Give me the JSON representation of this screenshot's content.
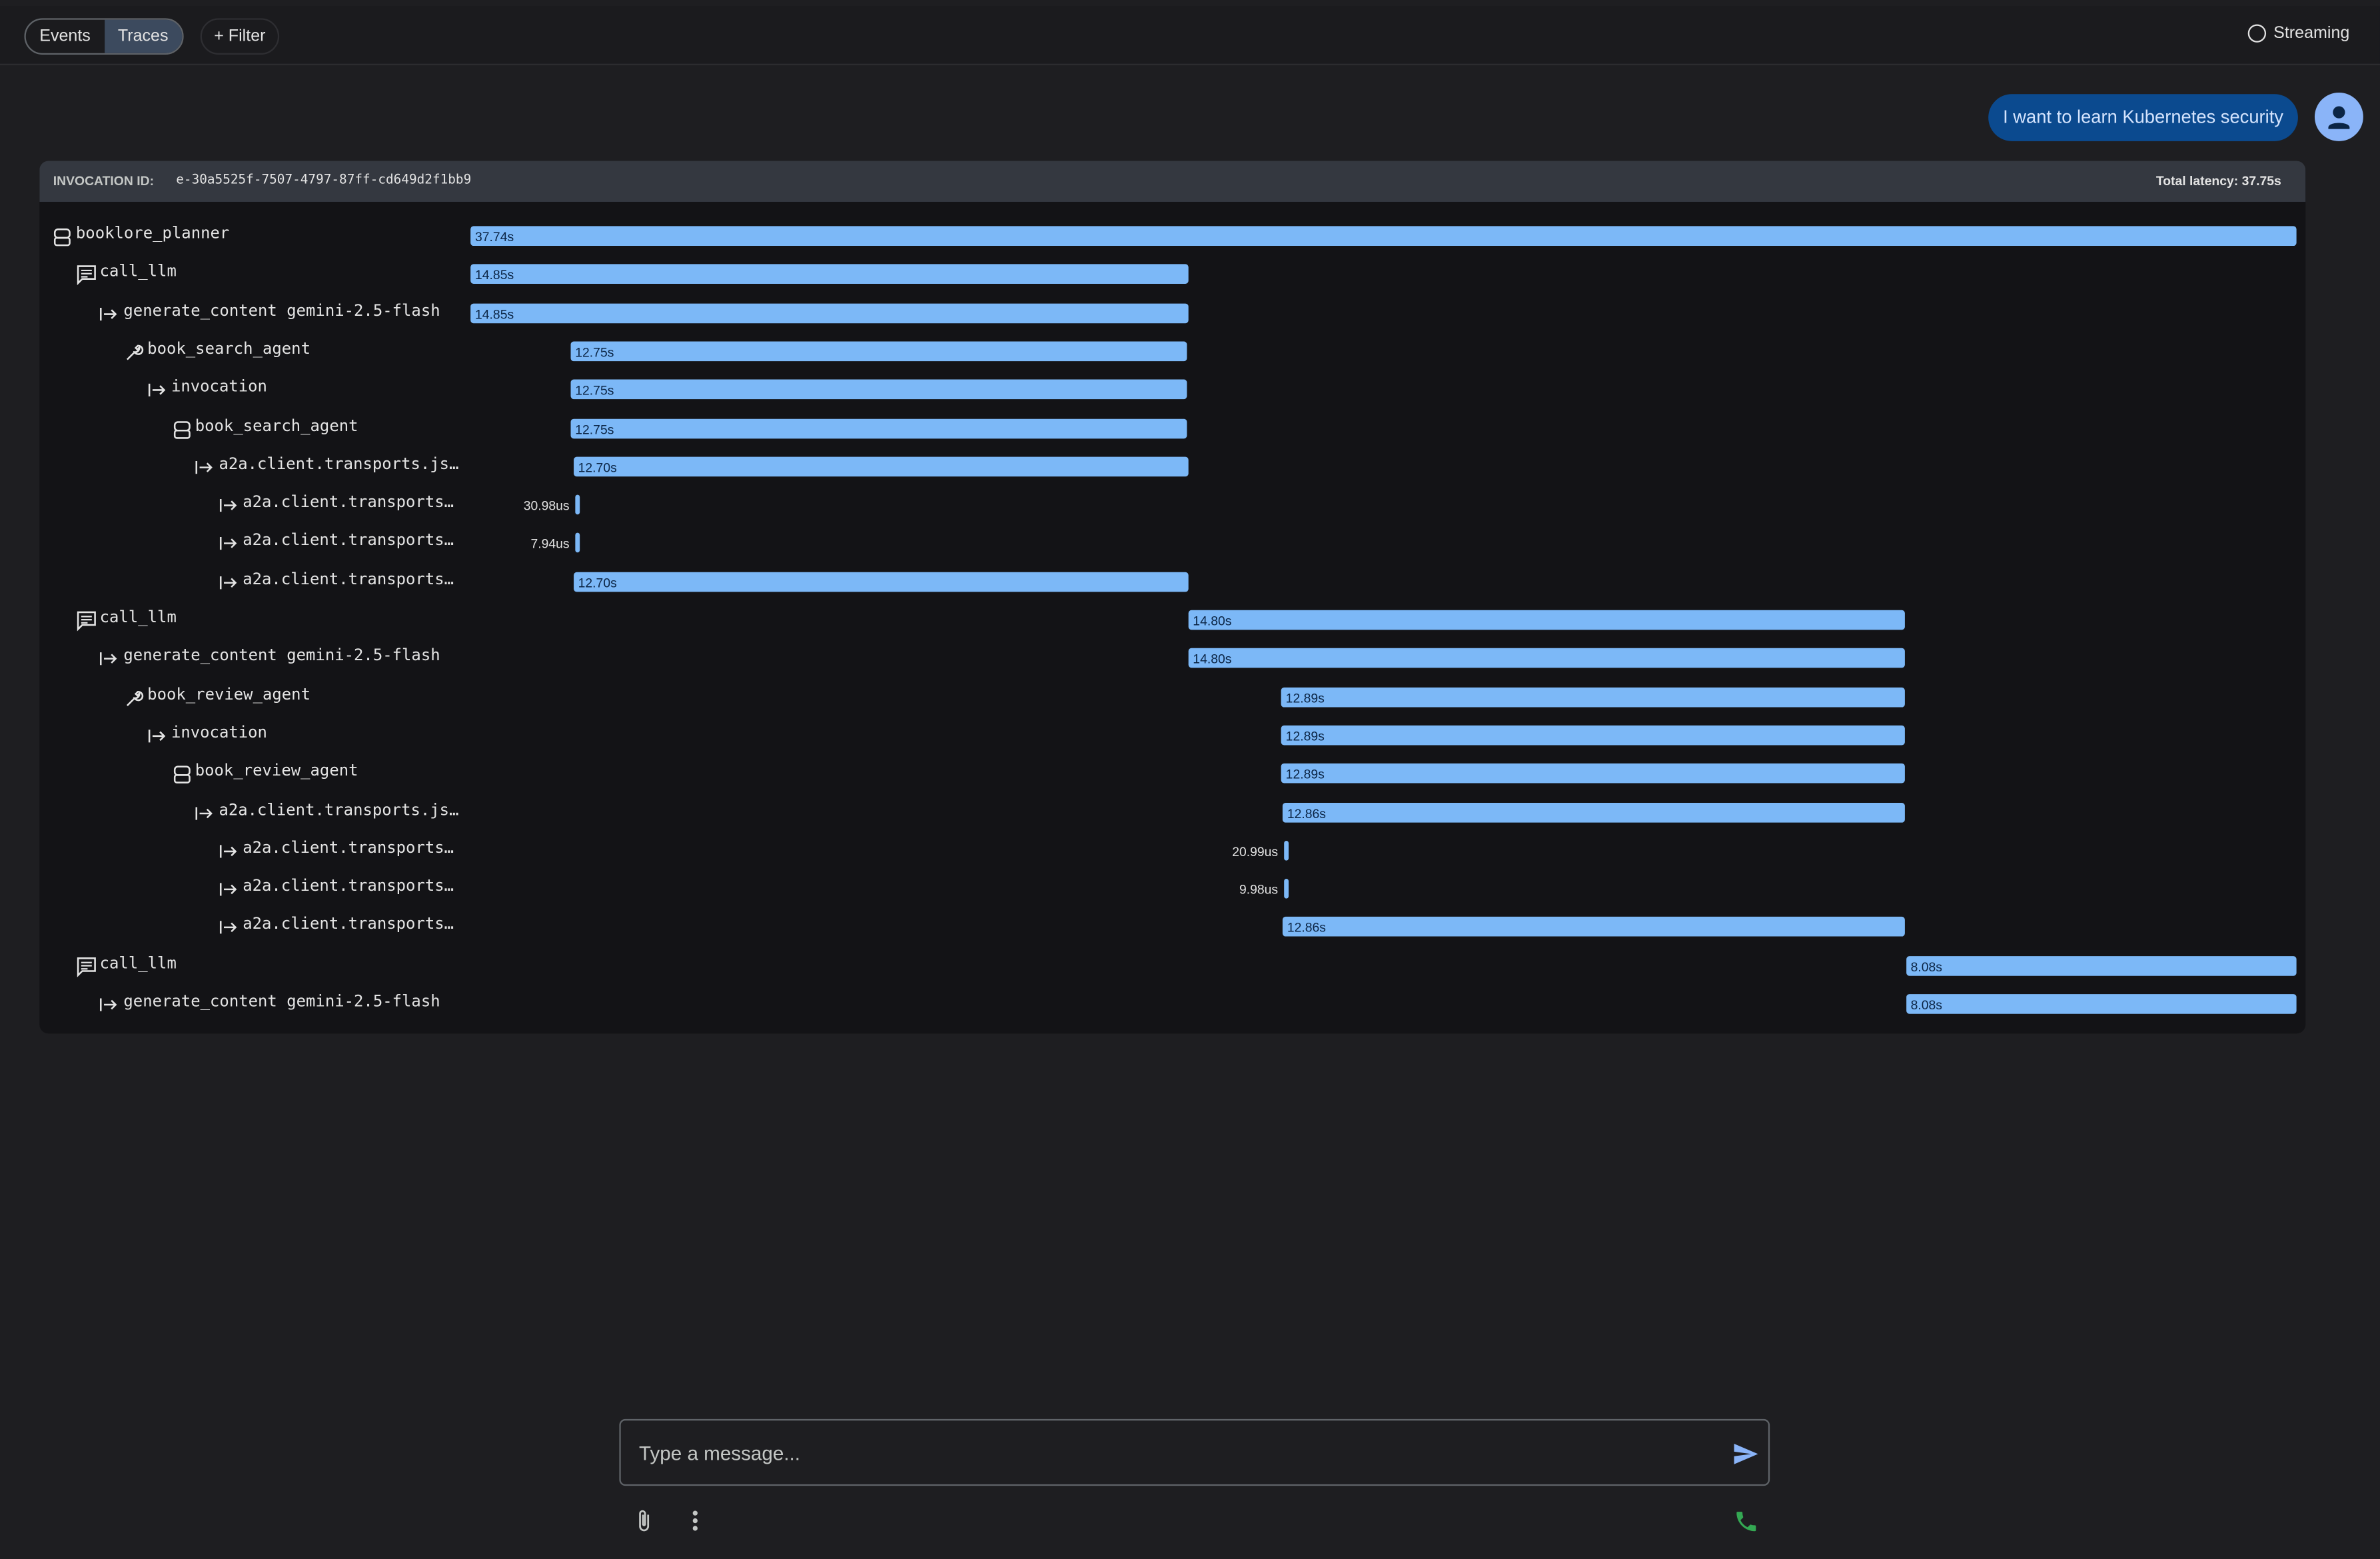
{
  "toolbar": {
    "tabs": [
      "Events",
      "Traces"
    ],
    "active_tab": 1,
    "filter": "Filter",
    "streaming": "Streaming"
  },
  "message": {
    "text": "I want to learn Kubernetes security"
  },
  "invocation": {
    "id_label": "INVOCATION ID:",
    "id": "e-30a5525f-7507-4797-87ff-cd649d2f1bb9",
    "total_latency_label": "Total latency: 37.75s",
    "total_latency": 37.75
  },
  "spans": [
    {
      "kind": "agent",
      "depth": 0,
      "name": "booklore_planner",
      "start": 0,
      "duration": 37.74,
      "duration_label": "37.74s"
    },
    {
      "kind": "llm",
      "depth": 1,
      "name": "call_llm",
      "start": 0,
      "duration": 14.85,
      "duration_label": "14.85s"
    },
    {
      "kind": "span",
      "depth": 2,
      "name": "generate_content gemini-2.5-flash",
      "start": 0,
      "duration": 14.85,
      "duration_label": "14.85s"
    },
    {
      "kind": "tool",
      "depth": 3,
      "name": "book_search_agent",
      "start": 2.07,
      "duration": 12.75,
      "duration_label": "12.75s"
    },
    {
      "kind": "span",
      "depth": 4,
      "name": "invocation",
      "start": 2.07,
      "duration": 12.75,
      "duration_label": "12.75s"
    },
    {
      "kind": "agent",
      "depth": 5,
      "name": "book_search_agent",
      "start": 2.07,
      "duration": 12.75,
      "duration_label": "12.75s"
    },
    {
      "kind": "span",
      "depth": 6,
      "name": "a2a.client.transports.js…",
      "start": 2.13,
      "duration": 12.7,
      "duration_label": "12.70s"
    },
    {
      "kind": "span",
      "depth": 7,
      "name": "a2a.client.transports…",
      "start": 2.17,
      "duration": 3.098e-05,
      "duration_label": "30.98us"
    },
    {
      "kind": "span",
      "depth": 7,
      "name": "a2a.client.transports…",
      "start": 2.17,
      "duration": 7.94e-06,
      "duration_label": "7.94us"
    },
    {
      "kind": "span",
      "depth": 7,
      "name": "a2a.client.transports…",
      "start": 2.13,
      "duration": 12.7,
      "duration_label": "12.70s"
    },
    {
      "kind": "llm",
      "depth": 1,
      "name": "call_llm",
      "start": 14.84,
      "duration": 14.8,
      "duration_label": "14.80s"
    },
    {
      "kind": "span",
      "depth": 2,
      "name": "generate_content gemini-2.5-flash",
      "start": 14.84,
      "duration": 14.8,
      "duration_label": "14.80s"
    },
    {
      "kind": "tool",
      "depth": 3,
      "name": "book_review_agent",
      "start": 16.76,
      "duration": 12.89,
      "duration_label": "12.89s"
    },
    {
      "kind": "span",
      "depth": 4,
      "name": "invocation",
      "start": 16.76,
      "duration": 12.89,
      "duration_label": "12.89s"
    },
    {
      "kind": "agent",
      "depth": 5,
      "name": "book_review_agent",
      "start": 16.76,
      "duration": 12.89,
      "duration_label": "12.89s"
    },
    {
      "kind": "span",
      "depth": 6,
      "name": "a2a.client.transports.js…",
      "start": 16.79,
      "duration": 12.86,
      "duration_label": "12.86s"
    },
    {
      "kind": "span",
      "depth": 7,
      "name": "a2a.client.transports…",
      "start": 16.82,
      "duration": 2.099e-05,
      "duration_label": "20.99us"
    },
    {
      "kind": "span",
      "depth": 7,
      "name": "a2a.client.transports…",
      "start": 16.82,
      "duration": 9.98e-06,
      "duration_label": "9.98us"
    },
    {
      "kind": "span",
      "depth": 7,
      "name": "a2a.client.transports…",
      "start": 16.79,
      "duration": 12.86,
      "duration_label": "12.86s"
    },
    {
      "kind": "llm",
      "depth": 1,
      "name": "call_llm",
      "start": 29.68,
      "duration": 8.08,
      "duration_label": "8.08s"
    },
    {
      "kind": "span",
      "depth": 2,
      "name": "generate_content gemini-2.5-flash",
      "start": 29.68,
      "duration": 8.08,
      "duration_label": "8.08s"
    }
  ],
  "composer": {
    "placeholder": "Type a message..."
  }
}
